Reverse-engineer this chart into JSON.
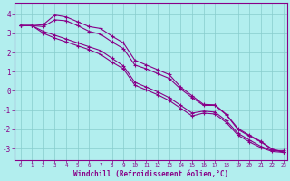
{
  "title": "",
  "xlabel": "Windchill (Refroidissement éolien,°C)",
  "ylabel": "",
  "xlim": [
    -0.5,
    23.3
  ],
  "ylim": [
    -3.6,
    4.6
  ],
  "yticks": [
    -3,
    -2,
    -1,
    0,
    1,
    2,
    3,
    4
  ],
  "xticks": [
    0,
    1,
    2,
    3,
    4,
    5,
    6,
    7,
    8,
    9,
    10,
    11,
    12,
    13,
    14,
    15,
    16,
    17,
    18,
    19,
    20,
    21,
    22,
    23
  ],
  "bg_color": "#b2eeee",
  "grid_color": "#88cccc",
  "line_color": "#880088",
  "lines": [
    [
      3.4,
      3.4,
      3.35,
      3.7,
      3.65,
      3.4,
      3.1,
      2.95,
      2.55,
      2.2,
      1.35,
      1.15,
      0.9,
      0.65,
      0.1,
      -0.35,
      -0.75,
      -0.75,
      -1.25,
      -2.0,
      -2.35,
      -2.65,
      -3.05,
      -3.2
    ],
    [
      3.4,
      3.4,
      3.45,
      3.95,
      3.85,
      3.6,
      3.35,
      3.25,
      2.85,
      2.5,
      1.6,
      1.35,
      1.1,
      0.85,
      0.2,
      -0.25,
      -0.7,
      -0.72,
      -1.22,
      -1.95,
      -2.3,
      -2.62,
      -3.02,
      -3.18
    ],
    [
      3.4,
      3.4,
      3.1,
      2.9,
      2.7,
      2.5,
      2.3,
      2.1,
      1.7,
      1.3,
      0.45,
      0.2,
      -0.05,
      -0.35,
      -0.75,
      -1.15,
      -1.05,
      -1.1,
      -1.55,
      -2.2,
      -2.55,
      -2.88,
      -3.1,
      -3.1
    ],
    [
      3.4,
      3.4,
      3.0,
      2.75,
      2.55,
      2.35,
      2.15,
      1.9,
      1.5,
      1.15,
      0.3,
      0.05,
      -0.2,
      -0.5,
      -0.9,
      -1.3,
      -1.15,
      -1.2,
      -1.65,
      -2.3,
      -2.65,
      -2.95,
      -3.15,
      -3.2
    ]
  ],
  "markers": [
    "+",
    "+",
    "+",
    "+"
  ],
  "markersize": 3.5,
  "linewidth": 0.8
}
